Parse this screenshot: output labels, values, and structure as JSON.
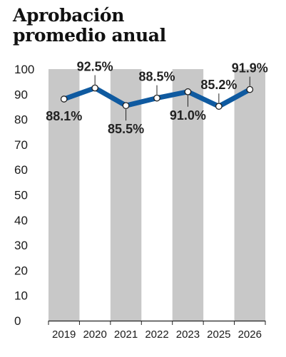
{
  "header": {
    "title_line1": "Aprobación",
    "title_line2": "promedio anual"
  },
  "colors": {
    "band": "#c8c8c8",
    "line": "#0f5aa0",
    "axis": "#222222",
    "marker_fill": "#ffffff",
    "label": "#222222"
  },
  "chart_data": {
    "type": "line",
    "categories": [
      "2019",
      "2020",
      "2021",
      "2022",
      "2023",
      "2025",
      "2026"
    ],
    "series": [
      {
        "values": [
          88.1,
          92.5,
          85.5,
          88.5,
          91.0,
          85.2,
          91.9
        ]
      }
    ],
    "data_labels": [
      "88.1%",
      "92.5%",
      "85.5%",
      "88.5%",
      "91.0%",
      "85.2%",
      "91.9%"
    ],
    "yticks": [
      "0",
      "10",
      "20",
      "30",
      "40",
      "50",
      "60",
      "70",
      "80",
      "90",
      "100"
    ],
    "ylim": [
      0,
      100
    ],
    "title": "Aprobación promedio anual",
    "xlabel": "",
    "ylabel": "",
    "grid": false,
    "legend": "none"
  }
}
